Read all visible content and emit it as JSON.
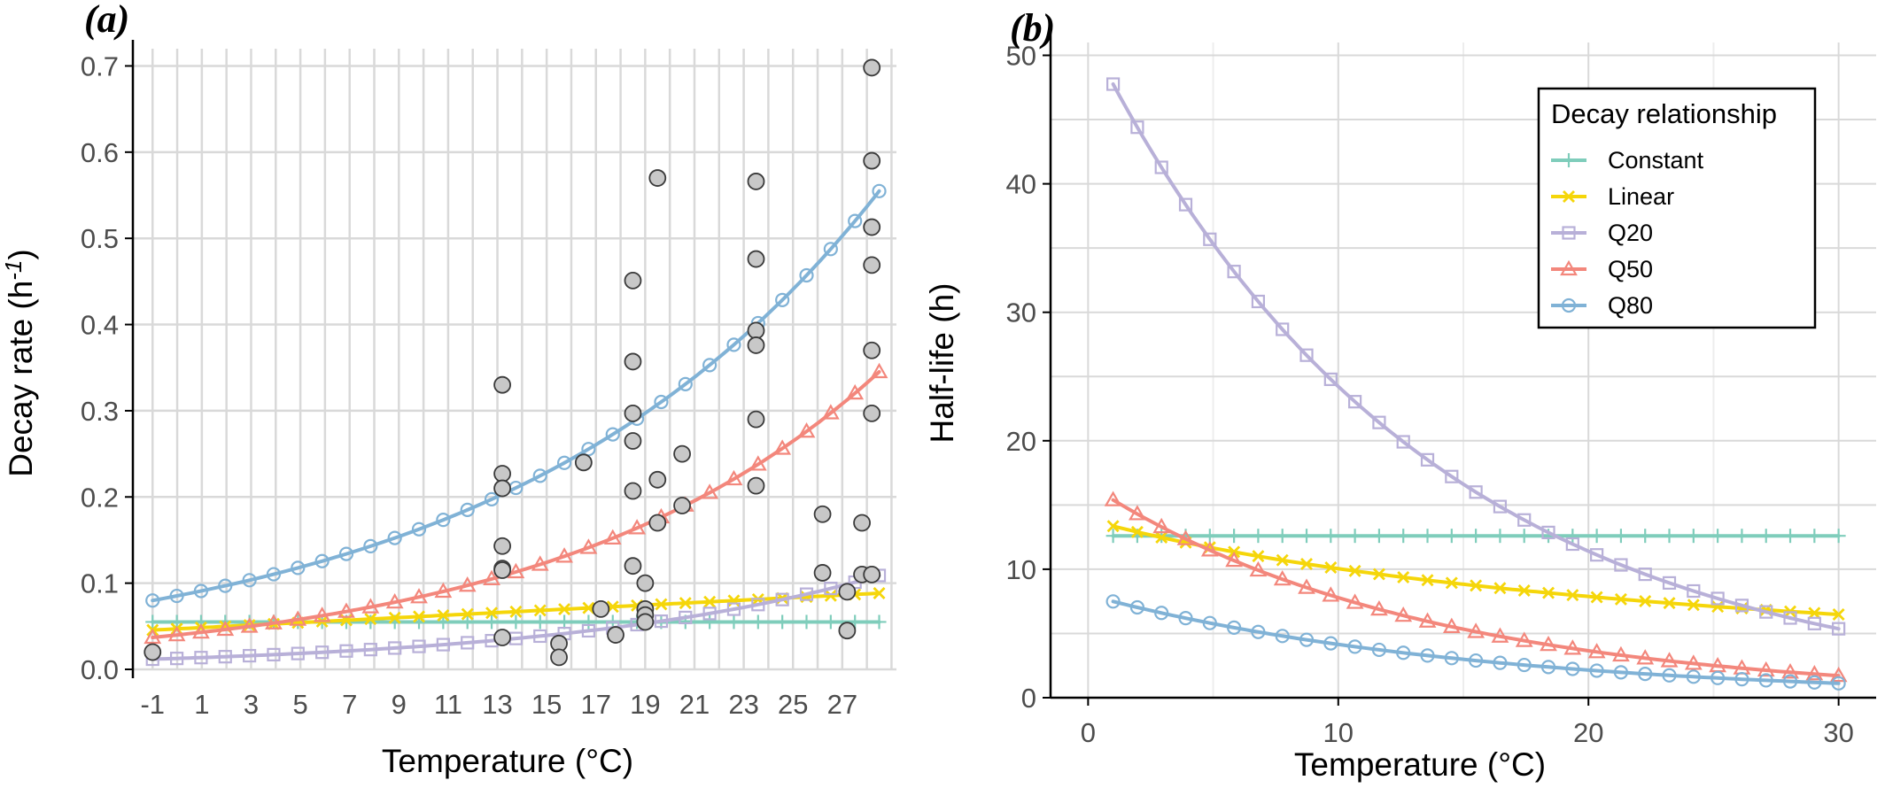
{
  "figure": {
    "colors": {
      "constant": "#7fcdbb",
      "linear": "#f5d60a",
      "q20": "#b8b0d8",
      "q50": "#f3877c",
      "q80": "#80b2d6",
      "observed_fill": "#c8c8c8",
      "observed_stroke": "#3a3a3a",
      "grid": "#d9d9d9",
      "axis": "#000000"
    }
  },
  "chart_data": [
    {
      "panel": "(a)",
      "type": "line",
      "xlabel": "Temperature (°C)",
      "ylabel_main": "Decay rate (h",
      "ylabel_sup": "-1",
      "ylabel_close": ")",
      "xlim": [
        -1.8,
        29.2
      ],
      "ylim": [
        0,
        0.72
      ],
      "xticks": [
        -1,
        1,
        3,
        5,
        7,
        9,
        11,
        13,
        15,
        17,
        19,
        21,
        23,
        25,
        27
      ],
      "xtick_labels": [
        "-1",
        "1",
        "3",
        "5",
        "7",
        "9",
        "11",
        "13",
        "15",
        "17",
        "19",
        "21",
        "23",
        "25",
        "27"
      ],
      "yticks": [
        0,
        0.1,
        0.2,
        0.3,
        0.4,
        0.5,
        0.6,
        0.7
      ],
      "ytick_labels": [
        "0.0",
        "0.1",
        "0.2",
        "0.3",
        "0.4",
        "0.5",
        "0.6",
        "0.7"
      ],
      "grid": true,
      "curve_x": [
        -1,
        28.5
      ],
      "series": [
        {
          "name": "Constant",
          "key": "constant",
          "marker": "plus",
          "model": "constant",
          "params": {
            "k": 0.055
          }
        },
        {
          "name": "Linear",
          "key": "linear",
          "marker": "x",
          "model": "linear",
          "params": {
            "k0": 0.047,
            "slope": 0.00145
          }
        },
        {
          "name": "Q20",
          "key": "q20",
          "marker": "square",
          "model": "exp",
          "params": {
            "k0": 0.0127,
            "r": 0.0754
          }
        },
        {
          "name": "Q50",
          "key": "q50",
          "marker": "triangle",
          "model": "exp",
          "params": {
            "k0": 0.0399,
            "r": 0.0757
          }
        },
        {
          "name": "Q80",
          "key": "q80",
          "marker": "circle",
          "model": "exp",
          "params": {
            "k0": 0.0853,
            "r": 0.0657
          }
        }
      ],
      "observed": {
        "name": "Observed",
        "x": [
          -1,
          13.2,
          13.2,
          13.2,
          13.2,
          13.2,
          13.2,
          13.2,
          15.5,
          15.5,
          16.5,
          17.2,
          17.8,
          18.5,
          18.5,
          18.5,
          18.5,
          18.5,
          18.5,
          19,
          19,
          19,
          19,
          19.5,
          19.5,
          19.5,
          20.5,
          20.5,
          23.5,
          23.5,
          23.5,
          23.5,
          23.5,
          23.5,
          26.2,
          26.2,
          27.2,
          27.2,
          27.8,
          27.8,
          28.2,
          28.2,
          28.2,
          28.2,
          28.2,
          28.2,
          28.2
        ],
        "y": [
          0.02,
          0.33,
          0.227,
          0.21,
          0.143,
          0.117,
          0.115,
          0.037,
          0.03,
          0.014,
          0.24,
          0.07,
          0.04,
          0.451,
          0.357,
          0.297,
          0.265,
          0.207,
          0.12,
          0.1,
          0.07,
          0.063,
          0.055,
          0.57,
          0.22,
          0.17,
          0.25,
          0.19,
          0.566,
          0.476,
          0.393,
          0.376,
          0.29,
          0.213,
          0.18,
          0.112,
          0.09,
          0.045,
          0.17,
          0.11,
          0.698,
          0.59,
          0.513,
          0.469,
          0.37,
          0.297,
          0.11
        ]
      }
    },
    {
      "panel": "(b)",
      "type": "line",
      "xlabel": "Temperature (°C)",
      "ylabel": "Half-life (h)",
      "xlim": [
        -1.5,
        31.5
      ],
      "ylim": [
        0,
        51
      ],
      "xticks": [
        0,
        10,
        20,
        30
      ],
      "xtick_labels": [
        "0",
        "10",
        "20",
        "30"
      ],
      "yticks": [
        0,
        10,
        20,
        30,
        40,
        50
      ],
      "ytick_labels": [
        "0",
        "10",
        "20",
        "30",
        "40",
        "50"
      ],
      "grid": true,
      "curve_x": [
        1,
        30
      ],
      "series": [
        {
          "name": "Constant",
          "key": "constant",
          "marker": "plus",
          "model": "constant",
          "params": {
            "h": 12.6
          }
        },
        {
          "name": "Linear",
          "key": "linear",
          "marker": "x",
          "model": "linear_halflife",
          "params": {
            "k0": 0.05,
            "slope": 0.0019
          }
        },
        {
          "name": "Q20",
          "key": "q20",
          "marker": "square",
          "model": "exp",
          "params": {
            "h0": 51.5,
            "r": -0.0754
          }
        },
        {
          "name": "Q50",
          "key": "q50",
          "marker": "triangle",
          "model": "exp",
          "params": {
            "h0": 16.6,
            "r": -0.0757
          }
        },
        {
          "name": "Q80",
          "key": "q80",
          "marker": "circle",
          "model": "exp",
          "params": {
            "h0": 8.0,
            "r": -0.0657
          }
        }
      ],
      "legend": {
        "title": "Decay relationship",
        "position": "top-right",
        "entries": [
          "Constant",
          "Linear",
          "Q20",
          "Q50",
          "Q80"
        ]
      }
    }
  ]
}
